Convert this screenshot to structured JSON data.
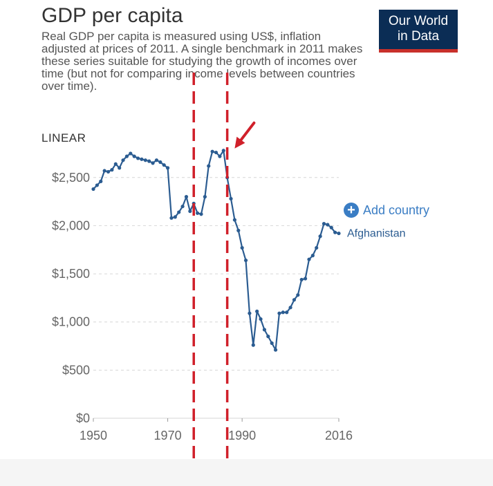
{
  "header": {
    "title": "GDP per capita",
    "subtitle": "Real GDP per capita is measured using US$, inflation adjusted at prices of 2011. A single benchmark in 2011 makes these series suitable for studying the growth of incomes over time (but not for comparing income levels between countries over time).",
    "logo_line1": "Our World",
    "logo_line2": "in Data"
  },
  "controls": {
    "scale_label": "LINEAR",
    "add_country_label": "Add country"
  },
  "colors": {
    "series": "#2b5c91",
    "annotation": "#d0202a",
    "logo_bg": "#0b2d55",
    "logo_accent": "#c8302b",
    "add_country": "#3a7dc4"
  },
  "chart_data": {
    "type": "line",
    "xlim": [
      1950,
      2016
    ],
    "ylim": [
      0,
      2800
    ],
    "x_ticks": [
      1950,
      1970,
      1990,
      2016
    ],
    "x_tick_labels": [
      "1950",
      "1970",
      "1990",
      "2016"
    ],
    "y_ticks": [
      0,
      500,
      1000,
      1500,
      2000,
      2500
    ],
    "y_tick_labels": [
      "$0",
      "$500",
      "$1,000",
      "$1,500",
      "$2,000",
      "$2,500"
    ],
    "grid": true,
    "series": [
      {
        "name": "Afghanistan",
        "x": [
          1950,
          1951,
          1952,
          1953,
          1954,
          1955,
          1956,
          1957,
          1958,
          1959,
          1960,
          1961,
          1962,
          1963,
          1964,
          1965,
          1966,
          1967,
          1968,
          1969,
          1970,
          1971,
          1972,
          1973,
          1974,
          1975,
          1976,
          1977,
          1978,
          1979,
          1980,
          1981,
          1982,
          1983,
          1984,
          1985,
          1986,
          1987,
          1988,
          1989,
          1990,
          1991,
          1992,
          1993,
          1994,
          1995,
          1996,
          1997,
          1998,
          1999,
          2000,
          2001,
          2002,
          2003,
          2004,
          2005,
          2006,
          2007,
          2008,
          2009,
          2010,
          2011,
          2012,
          2013,
          2014,
          2015,
          2016
        ],
        "values": [
          2380,
          2420,
          2460,
          2570,
          2560,
          2580,
          2640,
          2600,
          2680,
          2720,
          2750,
          2720,
          2700,
          2690,
          2680,
          2670,
          2650,
          2680,
          2660,
          2630,
          2600,
          2080,
          2090,
          2140,
          2200,
          2300,
          2150,
          2230,
          2130,
          2120,
          2300,
          2620,
          2770,
          2760,
          2720,
          2780,
          2500,
          2280,
          2060,
          1950,
          1770,
          1640,
          1090,
          760,
          1110,
          1030,
          920,
          850,
          780,
          710,
          1090,
          1100,
          1100,
          1150,
          1230,
          1280,
          1440,
          1450,
          1650,
          1690,
          1770,
          1890,
          2020,
          2010,
          1980,
          1930,
          1920
        ]
      }
    ],
    "annotations": [
      {
        "type": "vertical-dashed-line",
        "x": 1977
      },
      {
        "type": "vertical-dashed-line",
        "x": 1986
      },
      {
        "type": "arrow",
        "x": 1988,
        "y": 2780
      }
    ]
  }
}
